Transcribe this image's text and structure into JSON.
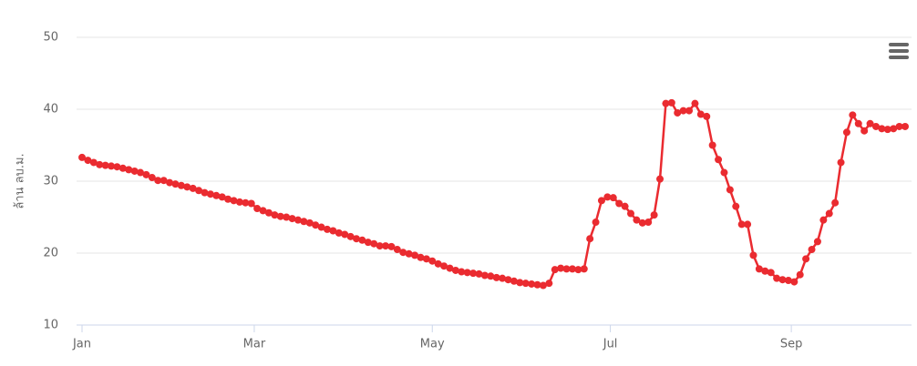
{
  "chart_data": {
    "type": "line",
    "y_label": "ล้าน ลบ.ม.",
    "x": [
      0,
      2,
      4,
      6,
      8,
      10,
      12,
      14,
      16,
      18,
      20,
      22,
      24,
      26,
      28,
      30,
      32,
      34,
      36,
      38,
      40,
      42,
      44,
      46,
      48,
      50,
      52,
      54,
      56,
      58,
      60,
      62,
      64,
      66,
      68,
      70,
      72,
      74,
      76,
      78,
      80,
      82,
      84,
      86,
      88,
      90,
      92,
      94,
      96,
      98,
      100,
      102,
      104,
      106,
      108,
      110,
      112,
      114,
      116,
      118,
      120,
      122,
      124,
      126,
      128,
      130,
      132,
      134,
      136,
      138,
      140,
      142,
      144,
      146,
      148,
      150,
      152,
      154,
      156,
      158,
      160,
      162,
      164,
      166,
      168,
      170,
      172,
      174,
      176,
      178,
      180,
      182,
      184,
      186,
      188,
      190,
      192,
      194,
      196,
      198,
      200,
      202,
      204,
      206,
      208,
      210,
      212,
      214,
      216,
      218,
      220,
      222,
      224,
      226,
      228,
      230,
      232,
      234,
      236,
      238,
      240,
      242,
      244,
      246,
      248,
      250,
      252,
      254,
      256,
      258,
      260,
      262,
      264,
      266,
      268,
      270,
      272,
      274,
      276,
      278,
      280,
      282
    ],
    "series": [
      {
        "color": "#ea2b30",
        "values": [
          33.3,
          32.9,
          32.6,
          32.3,
          32.2,
          32.1,
          32.0,
          31.8,
          31.6,
          31.4,
          31.2,
          30.9,
          30.5,
          30.1,
          30.1,
          29.8,
          29.6,
          29.4,
          29.2,
          29.0,
          28.7,
          28.4,
          28.2,
          28.0,
          27.8,
          27.5,
          27.3,
          27.1,
          27.0,
          26.9,
          26.2,
          25.9,
          25.6,
          25.3,
          25.1,
          25.0,
          24.8,
          24.6,
          24.4,
          24.2,
          23.9,
          23.6,
          23.3,
          23.1,
          22.8,
          22.6,
          22.3,
          22.0,
          21.8,
          21.5,
          21.3,
          21.0,
          21.0,
          20.9,
          20.5,
          20.1,
          19.9,
          19.7,
          19.4,
          19.2,
          18.9,
          18.5,
          18.2,
          17.9,
          17.6,
          17.4,
          17.3,
          17.2,
          17.1,
          16.9,
          16.8,
          16.6,
          16.5,
          16.3,
          16.1,
          15.9,
          15.8,
          15.7,
          15.6,
          15.5,
          15.8,
          17.7,
          17.9,
          17.8,
          17.8,
          17.7,
          17.8,
          22.0,
          24.3,
          27.3,
          27.8,
          27.7,
          26.9,
          26.5,
          25.5,
          24.6,
          24.2,
          24.3,
          25.3,
          30.3,
          40.8,
          40.9,
          39.5,
          39.8,
          39.8,
          40.8,
          39.3,
          39.0,
          35.0,
          33.0,
          31.2,
          28.8,
          26.5,
          24.0,
          24.0,
          19.7,
          17.8,
          17.5,
          17.3,
          16.5,
          16.3,
          16.2,
          16.0,
          17.0,
          19.2,
          20.5,
          21.6,
          24.6,
          25.5,
          27.0,
          32.6,
          36.8,
          39.2,
          38.0,
          37.0,
          38.0,
          37.6,
          37.3,
          37.2,
          37.3,
          37.6,
          37.6
        ]
      }
    ],
    "xlim": [
      0,
      282
    ],
    "xticks": [
      {
        "value": 0,
        "label": "Jan"
      },
      {
        "value": 59,
        "label": "Mar"
      },
      {
        "value": 120,
        "label": "May"
      },
      {
        "value": 181,
        "label": "Jul"
      },
      {
        "value": 243,
        "label": "Sep"
      }
    ],
    "ylim": [
      10,
      50
    ],
    "yticks": [
      10,
      20,
      30,
      40,
      50
    ],
    "grid": true
  }
}
